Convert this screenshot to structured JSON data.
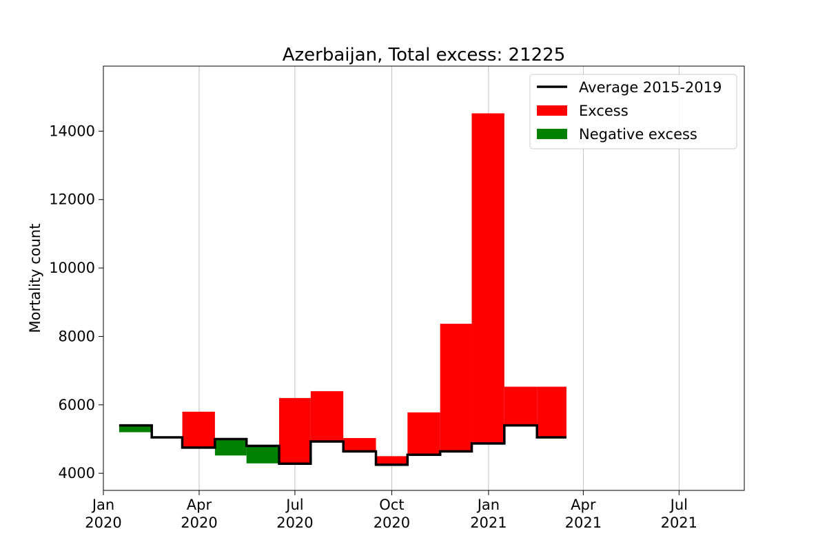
{
  "chart_data": {
    "type": "area",
    "title": "Azerbaijan, Total excess: 21225",
    "xlabel": "",
    "ylabel": "Mortality count",
    "xlim": [
      "2020-01-01",
      "2021-09-01"
    ],
    "ylim": [
      3500,
      15900
    ],
    "grid": "vertical",
    "legend_position": "top-right",
    "x_ticks": [
      {
        "date": "2020-01-01",
        "line1": "Jan",
        "line2": "2020"
      },
      {
        "date": "2020-04-01",
        "line1": "Apr",
        "line2": "2020"
      },
      {
        "date": "2020-07-01",
        "line1": "Jul",
        "line2": "2020"
      },
      {
        "date": "2020-10-01",
        "line1": "Oct",
        "line2": "2020"
      },
      {
        "date": "2021-01-01",
        "line1": "Jan",
        "line2": "2021"
      },
      {
        "date": "2021-04-01",
        "line1": "Apr",
        "line2": "2021"
      },
      {
        "date": "2021-07-01",
        "line1": "Jul",
        "line2": "2021"
      }
    ],
    "y_ticks": [
      4000,
      6000,
      8000,
      10000,
      12000,
      14000
    ],
    "series": [
      {
        "name": "Average 2015-2019",
        "color": "#000000",
        "step_edges": [
          "2020-01-16",
          "2020-02-16",
          "2020-03-16",
          "2020-04-16",
          "2020-05-16",
          "2020-06-16",
          "2020-07-16",
          "2020-08-16",
          "2020-09-16",
          "2020-10-16",
          "2020-11-16",
          "2020-12-16",
          "2021-01-16",
          "2021-02-16",
          "2021-03-16"
        ],
        "values": [
          5400,
          5050,
          4750,
          5000,
          4800,
          4280,
          4930,
          4640,
          4250,
          4540,
          4640,
          4870,
          5400,
          5050
        ]
      },
      {
        "name": "Excess",
        "color": "#ff0000",
        "values": [
          null,
          null,
          5800,
          null,
          null,
          6200,
          6400,
          5030,
          4500,
          5780,
          8370,
          14520,
          6530,
          6530
        ]
      },
      {
        "name": "Negative excess",
        "color": "#008000",
        "values": [
          5200,
          null,
          null,
          4520,
          4290,
          null,
          null,
          null,
          null,
          null,
          null,
          null,
          null,
          null
        ]
      }
    ]
  }
}
